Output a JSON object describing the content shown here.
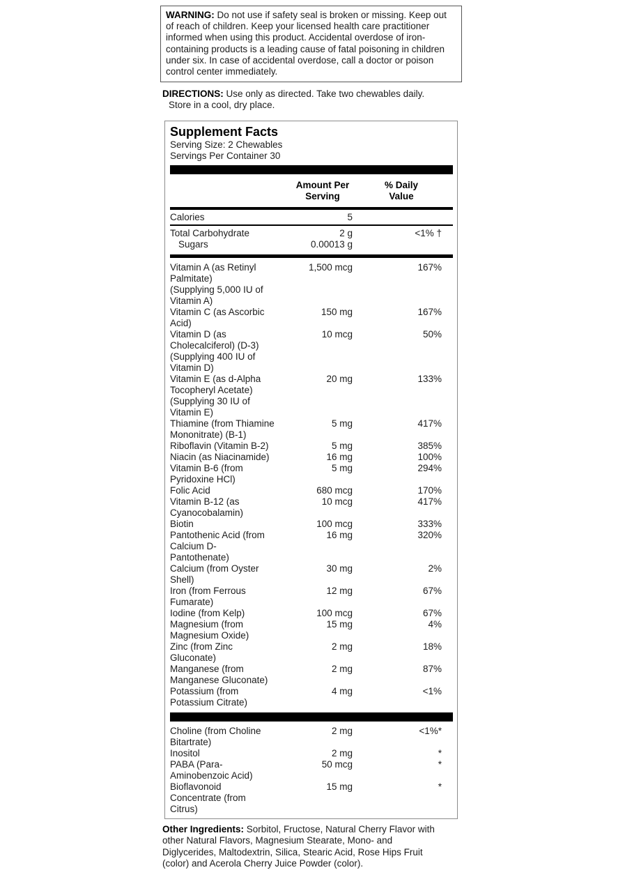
{
  "warning": {
    "label": "WARNING:",
    "text": "Do not use if safety seal is broken or missing. Keep out\nof reach of children. Keep your licensed health care practitioner\ninformed when using this product. Accidental overdose of iron-\ncontaining products is a leading cause of fatal poisoning in children\nunder six. In case of accidental overdose, call a doctor or poison\ncontrol center immediately."
  },
  "directions": {
    "label": "DIRECTIONS:",
    "line1": "Use only as directed. Take two chewables daily.",
    "line2": "Store in a cool, dry place."
  },
  "supplement_facts": {
    "title": "Supplement Facts",
    "serving_size": "Serving Size: 2 Chewables",
    "servings_per_container": "Servings Per Container 30",
    "columns": {
      "amount": "Amount Per\nServing",
      "daily_value": "% Daily\nValue"
    },
    "calories": {
      "name": "Calories",
      "amount": "5"
    },
    "carbohydrate": [
      {
        "name": "Total Carbohydrate",
        "amount": "2 g",
        "dv": "<1% †"
      },
      {
        "name": "Sugars",
        "amount": "0.00013 g",
        "dv": ""
      }
    ],
    "nutrients": [
      {
        "name": "Vitamin A (as Retinyl\nPalmitate)\n(Supplying 5,000 IU of\nVitamin A)",
        "amount": "1,500 mcg",
        "dv": "167%"
      },
      {
        "name": "Vitamin C (as Ascorbic\nAcid)",
        "amount": "150 mg",
        "dv": "167%"
      },
      {
        "name": "Vitamin D (as\nCholecalciferol) (D-3)\n(Supplying 400 IU of\nVitamin D)",
        "amount": "10 mcg",
        "dv": "50%"
      },
      {
        "name": "Vitamin E (as d-Alpha\nTocopheryl Acetate)\n(Supplying 30 IU of\nVitamin E)",
        "amount": "20 mg",
        "dv": "133%"
      },
      {
        "name": "Thiamine (from Thiamine\nMononitrate) (B-1)",
        "amount": "5 mg",
        "dv": "417%"
      },
      {
        "name": "Riboflavin (Vitamin B-2)",
        "amount": "5 mg",
        "dv": "385%"
      },
      {
        "name": "Niacin (as Niacinamide)",
        "amount": "16 mg",
        "dv": "100%"
      },
      {
        "name": "Vitamin B-6 (from\nPyridoxine HCl)",
        "amount": "5 mg",
        "dv": "294%"
      },
      {
        "name": "Folic Acid",
        "amount": "680 mcg",
        "dv": "170%"
      },
      {
        "name": "Vitamin B-12 (as\nCyanocobalamin)",
        "amount": "10 mcg",
        "dv": "417%"
      },
      {
        "name": "Biotin",
        "amount": "100 mcg",
        "dv": "333%"
      },
      {
        "name": "Pantothenic Acid (from\nCalcium D-\nPantothenate)",
        "amount": "16 mg",
        "dv": "320%"
      },
      {
        "name": "Calcium (from Oyster\nShell)",
        "amount": "30 mg",
        "dv": "2%"
      },
      {
        "name": "Iron (from Ferrous\nFumarate)",
        "amount": "12 mg",
        "dv": "67%"
      },
      {
        "name": "Iodine (from Kelp)",
        "amount": "100 mcg",
        "dv": "67%"
      },
      {
        "name": "Magnesium (from\nMagnesium Oxide)",
        "amount": "15 mg",
        "dv": "4%"
      },
      {
        "name": "Zinc (from Zinc\nGluconate)",
        "amount": "2 mg",
        "dv": "18%"
      },
      {
        "name": "Manganese (from\nManganese Gluconate)",
        "amount": "2 mg",
        "dv": "87%"
      },
      {
        "name": "Potassium (from\nPotassium Citrate)",
        "amount": "4 mg",
        "dv": "<1%"
      }
    ],
    "other_nutrients": [
      {
        "name": "Choline (from Choline\nBitartrate)",
        "amount": "2 mg",
        "dv": "<1%*"
      },
      {
        "name": "Inositol",
        "amount": "2 mg",
        "dv": "*"
      },
      {
        "name": "PABA (Para-\nAminobenzoic Acid)",
        "amount": "50 mcg",
        "dv": "*"
      },
      {
        "name": "Bioflavonoid\nConcentrate (from\nCitrus)",
        "amount": "15 mg",
        "dv": "*"
      }
    ]
  },
  "other_ingredients": {
    "label": "Other Ingredients:",
    "text": "Sorbitol, Fructose, Natural Cherry Flavor with\nother Natural Flavors, Magnesium Stearate, Mono- and\nDiglycerides, Maltodextrin, Silica, Stearic Acid, Rose Hips Fruit\n(color) and Acerola Cherry Juice Powder (color)."
  },
  "colors": {
    "text": "#1c1c1c",
    "rule": "#000000",
    "box_border": "#8c8c8c",
    "warning_border": "#555555",
    "background": "#ffffff"
  }
}
